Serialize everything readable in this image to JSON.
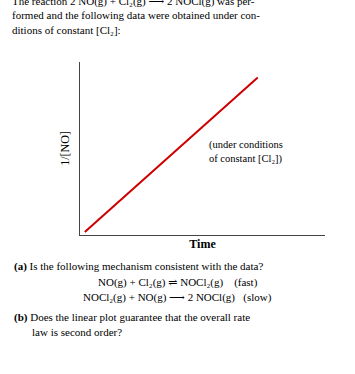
{
  "chart_data": {
    "type": "line",
    "title": "The reaction 2 NO(g) + Cl₂(g) ⟶ 2 NOCl(g) was per-\nformed and the following data were obtained under con-\nditions of constant [Cl₂]:",
    "x": [
      0.0,
      0.72
    ],
    "values": [
      0.0,
      1.0
    ],
    "color": "#cc0000",
    "xlabel": "Time",
    "ylabel": "1/[NO]",
    "xlim": [
      -0.02,
      1.0
    ],
    "ylim": [
      -0.02,
      1.1
    ],
    "tick_labels": false,
    "grid": false,
    "annotations": [
      "(under conditions\nof constant [Cl₂])",
      "(a) Is the following mechanism consistent with the data?",
      "NO(g) + Cl₂(g) ⇌ NOCl₂(g)    (fast)",
      "NOCl₂(g) + NO(g) ⟶ 2 NOCl(g)   (slow)",
      "(b) Does the linear plot guarantee that the overall rate\nlaw is second order?"
    ]
  }
}
